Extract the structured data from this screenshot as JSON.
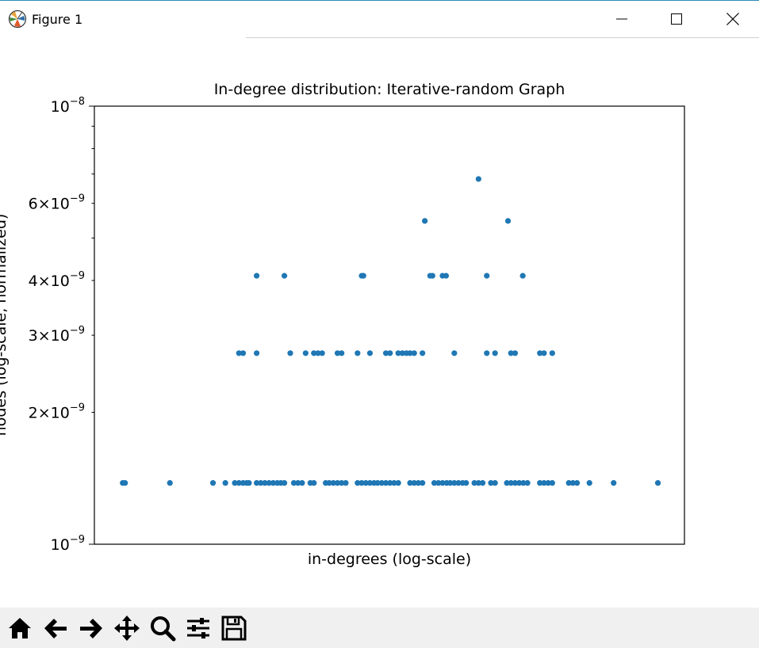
{
  "window": {
    "title": "Figure 1",
    "controls": [
      "minimize",
      "maximize",
      "close"
    ]
  },
  "toolbar": {
    "buttons": [
      {
        "name": "home-icon",
        "label": "Home"
      },
      {
        "name": "back-arrow-icon",
        "label": "Back"
      },
      {
        "name": "forward-arrow-icon",
        "label": "Forward"
      },
      {
        "name": "pan-move-icon",
        "label": "Pan"
      },
      {
        "name": "zoom-magnifier-icon",
        "label": "Zoom"
      },
      {
        "name": "configure-subplots-icon",
        "label": "Subplots"
      },
      {
        "name": "save-floppy-icon",
        "label": "Save"
      }
    ]
  },
  "colors": {
    "marker": "#1f77b4",
    "axes": "#000000",
    "toolbar_bg": "#f0f0f0",
    "accent_line": "#2a8cb0"
  },
  "chart_data": {
    "type": "scatter",
    "title": "In-degree distribution: Iterative-random Graph",
    "xlabel": "in-degrees (log-scale)",
    "ylabel": "nodes (log-scale, normalized)",
    "yscale": "log",
    "ylim": [
      1e-09,
      1e-08
    ],
    "xlim": [
      0,
      100
    ],
    "xticks_shown": false,
    "grid": false,
    "yticks": [
      {
        "value": 1e-09,
        "label": "10^-9",
        "major": true
      },
      {
        "value": 2e-09,
        "label": "2×10^-9",
        "major": false
      },
      {
        "value": 3e-09,
        "label": "3×10^-9",
        "major": false
      },
      {
        "value": 4e-09,
        "label": "4×10^-9",
        "major": false
      },
      {
        "value": 6e-09,
        "label": "6×10^-9",
        "major": false
      },
      {
        "value": 1e-08,
        "label": "10^-8",
        "major": true
      }
    ],
    "yminor_ticks": [
      5e-09,
      7e-09,
      8e-09,
      9e-09
    ],
    "series": [
      {
        "levels": [
          {
            "y": 1.38e-09,
            "x": [
              4.8,
              5.2,
              12.8,
              20.1,
              22.2,
              23.8,
              24.5,
              25.2,
              25.8,
              26.2,
              27.5,
              28.2,
              28.9,
              29.6,
              30.3,
              31.0,
              31.6,
              32.2,
              33.8,
              34.5,
              35.2,
              36.6,
              37.2,
              39.2,
              39.8,
              40.5,
              41.2,
              41.9,
              42.6,
              44.6,
              45.3,
              46.0,
              46.7,
              47.4,
              48.0,
              48.7,
              49.4,
              50.1,
              50.8,
              51.5,
              53.5,
              54.2,
              54.9,
              55.6,
              57.6,
              58.3,
              59.0,
              59.7,
              60.3,
              61.0,
              61.7,
              62.4,
              63.0,
              64.4,
              65.1,
              65.8,
              67.2,
              67.9,
              69.9,
              70.6,
              71.3,
              72.0,
              72.7,
              73.4,
              75.5,
              76.2,
              76.9,
              77.6,
              80.4,
              81.1,
              81.8,
              83.9,
              88.0,
              95.5
            ]
          },
          {
            "y": 2.73e-09,
            "x": [
              24.5,
              25.2,
              27.5,
              33.2,
              35.8,
              37.2,
              37.9,
              38.6,
              41.2,
              41.9,
              44.6,
              46.7,
              49.4,
              50.1,
              51.5,
              52.2,
              52.9,
              53.5,
              54.2,
              55.6,
              61.0,
              66.5,
              67.9,
              70.6,
              71.3,
              75.5,
              76.2,
              77.6
            ]
          },
          {
            "y": 4.1e-09,
            "x": [
              27.5,
              32.2,
              45.3,
              45.6,
              56.9,
              57.3,
              59.0,
              59.6,
              66.5,
              72.6
            ]
          },
          {
            "y": 5.47e-09,
            "x": [
              56.0,
              70.1
            ]
          },
          {
            "y": 6.82e-09,
            "x": [
              65.1
            ]
          }
        ]
      }
    ]
  }
}
